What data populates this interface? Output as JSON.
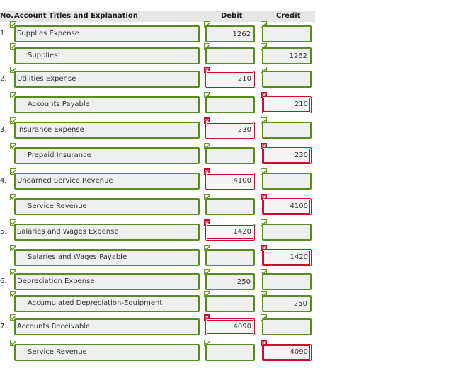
{
  "header": {
    "no": "No.",
    "account": "Account Titles and Explanation",
    "debit": "Debit",
    "credit": "Credit"
  },
  "entries": [
    {
      "no": "1.",
      "lines": [
        {
          "account": "Supplies Expense",
          "debit": 1262,
          "credit": null,
          "debit_ok": true,
          "credit_ok": true
        },
        {
          "account": "Supplies",
          "debit": null,
          "credit": 1262,
          "debit_ok": true,
          "credit_ok": true
        }
      ]
    },
    {
      "no": "2.",
      "lines": [
        {
          "account": "Utilities Expense",
          "debit": 210,
          "credit": null,
          "debit_ok": false,
          "credit_ok": true
        },
        {
          "account": "Accounts Payable",
          "debit": null,
          "credit": 210,
          "debit_ok": true,
          "credit_ok": false
        }
      ]
    },
    {
      "no": "3.",
      "lines": [
        {
          "account": "Insurance Expense",
          "debit": 230,
          "credit": null,
          "debit_ok": false,
          "credit_ok": true
        },
        {
          "account": "Prepaid Insurance",
          "debit": null,
          "credit": 230,
          "debit_ok": true,
          "credit_ok": false
        }
      ]
    },
    {
      "no": "4.",
      "lines": [
        {
          "account": "Unearned Service Revenue",
          "debit": 4100,
          "credit": null,
          "debit_ok": false,
          "credit_ok": true
        },
        {
          "account": "Service Revenue",
          "debit": null,
          "credit": 4100,
          "debit_ok": true,
          "credit_ok": false
        }
      ]
    },
    {
      "no": "5.",
      "lines": [
        {
          "account": "Salaries and Wages Expense",
          "debit": 1420,
          "credit": null,
          "debit_ok": false,
          "credit_ok": true
        },
        {
          "account": "Salaries and Wages Payable",
          "debit": null,
          "credit": 1420,
          "debit_ok": true,
          "credit_ok": false
        }
      ]
    },
    {
      "no": "6.",
      "lines": [
        {
          "account": "Depreciation Expense",
          "debit": 250,
          "credit": null,
          "debit_ok": true,
          "credit_ok": true
        },
        {
          "account": "Accumulated Depreciation-Equipment",
          "debit": null,
          "credit": 250,
          "debit_ok": true,
          "credit_ok": true
        }
      ]
    },
    {
      "no": "7.",
      "lines": [
        {
          "account": "Accounts Receivable",
          "debit": 4090,
          "credit": null,
          "debit_ok": false,
          "credit_ok": true
        },
        {
          "account": "Service Revenue",
          "debit": null,
          "credit": 4090,
          "debit_ok": true,
          "credit_ok": false
        }
      ]
    }
  ]
}
